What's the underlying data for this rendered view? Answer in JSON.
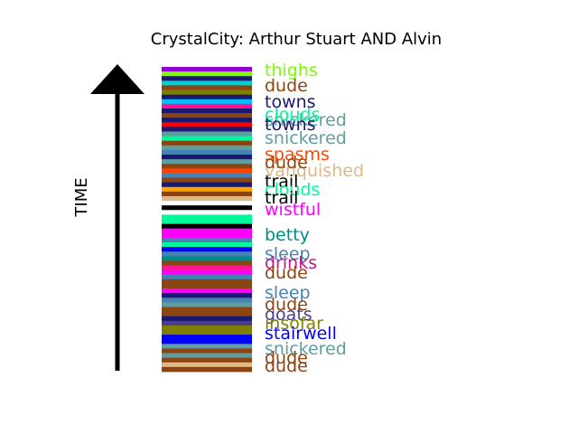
{
  "chart_data": {
    "type": "bar",
    "title": "CrystalCity: Arthur Stuart AND Alvin",
    "ylabel": "TIME",
    "stripe_colors": [
      "#9400d3",
      "#7cfc00",
      "#191970",
      "#00ced1",
      "#8b4513",
      "#808000",
      "#191970",
      "#00bfff",
      "#ff1493",
      "#191970",
      "#8b4513",
      "#191970",
      "#ff0000",
      "#191970",
      "#5f9ea0",
      "#00fa9a",
      "#8b4513",
      "#5f9ea0",
      "#4682b4",
      "#191970",
      "#5f9ea0",
      "#8b4513",
      "#ff4500",
      "#4682b4",
      "#8b4513",
      "#191970",
      "#ffa500",
      "#8b4513",
      "#deb887",
      "#ffffff",
      "#000000",
      "#ffffff",
      "#00fa9a",
      "#00fa9a",
      "#000000",
      "#ff00ff",
      "#ff00ff",
      "#4682b4",
      "#00fa9a",
      "#0000ff",
      "#4682b4",
      "#008b8b",
      "#8b4513",
      "#ff1493",
      "#ff00ff",
      "#4682b4",
      "#8b4513",
      "#8b4513",
      "#ff00ff",
      "#191970",
      "#4682b4",
      "#5f9ea0",
      "#8b4513",
      "#8b4513",
      "#191970",
      "#483d8b",
      "#808000",
      "#808000",
      "#0000ff",
      "#0000ff",
      "#5f9ea0",
      "#8b4513",
      "#5f9ea0",
      "#8b4513",
      "#deb887",
      "#8b4513"
    ],
    "labels": [
      {
        "text": "thighs",
        "color": "#7cfc00"
      },
      {
        "text": "dude",
        "color": "#8b4513"
      },
      {
        "text": "towns",
        "color": "#191970"
      },
      {
        "text": "snickered",
        "color": "#5f9ea0"
      },
      {
        "text": "clouds",
        "color": "#00fa9a"
      },
      {
        "text": "towns",
        "color": "#191970"
      },
      {
        "text": "snickered",
        "color": "#5f9ea0"
      },
      {
        "text": "spasms",
        "color": "#ff4500"
      },
      {
        "text": "vanquished",
        "color": "#deb887"
      },
      {
        "text": "dude",
        "color": "#8b4513"
      },
      {
        "text": "trail",
        "color": "#000000"
      },
      {
        "text": "clouds",
        "color": "#00fa9a"
      },
      {
        "text": "trail",
        "color": "#000000"
      },
      {
        "text": "wistful",
        "color": "#ff00ff"
      },
      {
        "text": "betty",
        "color": "#008b8b"
      },
      {
        "text": "sleep",
        "color": "#4682b4"
      },
      {
        "text": "drinks",
        "color": "#c71585"
      },
      {
        "text": "dude",
        "color": "#8b4513"
      },
      {
        "text": "sleep",
        "color": "#4682b4"
      },
      {
        "text": "dude",
        "color": "#8b4513"
      },
      {
        "text": "goats",
        "color": "#483d8b"
      },
      {
        "text": "insofar",
        "color": "#808000"
      },
      {
        "text": "stairwell",
        "color": "#0000ff"
      },
      {
        "text": "snickered",
        "color": "#5f9ea0"
      },
      {
        "text": "dude",
        "color": "#8b4513"
      },
      {
        "text": "dude",
        "color": "#8b4513"
      }
    ]
  }
}
